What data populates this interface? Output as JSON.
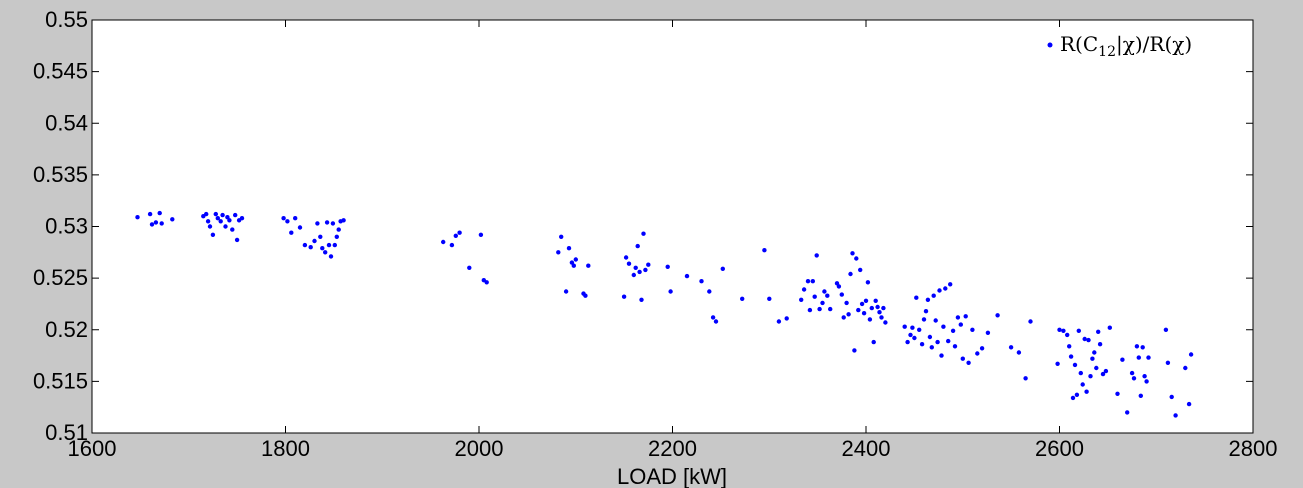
{
  "chart_data": {
    "type": "scatter",
    "title": "",
    "xlabel": "LOAD [kW]",
    "ylabel": "",
    "xlim": [
      1600,
      2800
    ],
    "ylim": [
      0.51,
      0.55
    ],
    "x_ticks": [
      "1600",
      "1800",
      "2000",
      "2200",
      "2400",
      "2600",
      "2800"
    ],
    "y_ticks": [
      "0.51",
      "0.515",
      "0.52",
      "0.525",
      "0.53",
      "0.535",
      "0.54",
      "0.545",
      "0.55"
    ],
    "grid": false,
    "legend_position": "top-right",
    "series": [
      {
        "name": "R(C12|χ)/R(χ)",
        "legend_parts": {
          "pre": "R(C",
          "sub": "12",
          "post": "|χ)/R(χ)"
        },
        "color": "#0000ff",
        "points": [
          [
            1647,
            0.5309
          ],
          [
            1660,
            0.5312
          ],
          [
            1662,
            0.5302
          ],
          [
            1666,
            0.5304
          ],
          [
            1670,
            0.5313
          ],
          [
            1672,
            0.5303
          ],
          [
            1683,
            0.5307
          ],
          [
            1715,
            0.531
          ],
          [
            1718,
            0.5312
          ],
          [
            1720,
            0.5305
          ],
          [
            1722,
            0.53
          ],
          [
            1725,
            0.5292
          ],
          [
            1728,
            0.5312
          ],
          [
            1730,
            0.5308
          ],
          [
            1733,
            0.5305
          ],
          [
            1735,
            0.5311
          ],
          [
            1738,
            0.53
          ],
          [
            1740,
            0.5309
          ],
          [
            1742,
            0.5306
          ],
          [
            1745,
            0.5297
          ],
          [
            1748,
            0.5311
          ],
          [
            1750,
            0.5287
          ],
          [
            1752,
            0.5306
          ],
          [
            1755,
            0.5308
          ],
          [
            1798,
            0.5308
          ],
          [
            1802,
            0.5305
          ],
          [
            1806,
            0.5294
          ],
          [
            1810,
            0.5308
          ],
          [
            1815,
            0.5299
          ],
          [
            1820,
            0.5282
          ],
          [
            1826,
            0.528
          ],
          [
            1830,
            0.5286
          ],
          [
            1833,
            0.5303
          ],
          [
            1836,
            0.529
          ],
          [
            1838,
            0.5279
          ],
          [
            1841,
            0.5275
          ],
          [
            1843,
            0.5304
          ],
          [
            1845,
            0.5282
          ],
          [
            1847,
            0.5271
          ],
          [
            1849,
            0.5303
          ],
          [
            1851,
            0.5282
          ],
          [
            1853,
            0.529
          ],
          [
            1855,
            0.5297
          ],
          [
            1857,
            0.5305
          ],
          [
            1860,
            0.5306
          ],
          [
            1963,
            0.5285
          ],
          [
            1972,
            0.5282
          ],
          [
            1976,
            0.5291
          ],
          [
            1980,
            0.5294
          ],
          [
            1990,
            0.526
          ],
          [
            2002,
            0.5292
          ],
          [
            2005,
            0.5248
          ],
          [
            2008,
            0.5246
          ],
          [
            2082,
            0.5275
          ],
          [
            2085,
            0.529
          ],
          [
            2090,
            0.5237
          ],
          [
            2093,
            0.5279
          ],
          [
            2096,
            0.5265
          ],
          [
            2098,
            0.5262
          ],
          [
            2100,
            0.5268
          ],
          [
            2108,
            0.5235
          ],
          [
            2110,
            0.5233
          ],
          [
            2113,
            0.5262
          ],
          [
            2150,
            0.5232
          ],
          [
            2152,
            0.527
          ],
          [
            2155,
            0.5264
          ],
          [
            2160,
            0.5253
          ],
          [
            2162,
            0.526
          ],
          [
            2164,
            0.5281
          ],
          [
            2166,
            0.5256
          ],
          [
            2168,
            0.5229
          ],
          [
            2170,
            0.5293
          ],
          [
            2172,
            0.5258
          ],
          [
            2175,
            0.5263
          ],
          [
            2195,
            0.5261
          ],
          [
            2198,
            0.5237
          ],
          [
            2215,
            0.5252
          ],
          [
            2230,
            0.5247
          ],
          [
            2238,
            0.5237
          ],
          [
            2242,
            0.5212
          ],
          [
            2245,
            0.5208
          ],
          [
            2252,
            0.5259
          ],
          [
            2272,
            0.523
          ],
          [
            2295,
            0.5277
          ],
          [
            2300,
            0.523
          ],
          [
            2310,
            0.5208
          ],
          [
            2318,
            0.5211
          ],
          [
            2333,
            0.5229
          ],
          [
            2336,
            0.5239
          ],
          [
            2340,
            0.5247
          ],
          [
            2342,
            0.5219
          ],
          [
            2345,
            0.5247
          ],
          [
            2347,
            0.5232
          ],
          [
            2349,
            0.5272
          ],
          [
            2352,
            0.522
          ],
          [
            2355,
            0.5226
          ],
          [
            2357,
            0.5237
          ],
          [
            2360,
            0.5233
          ],
          [
            2363,
            0.522
          ],
          [
            2370,
            0.5245
          ],
          [
            2372,
            0.5242
          ],
          [
            2375,
            0.5234
          ],
          [
            2377,
            0.5212
          ],
          [
            2380,
            0.5226
          ],
          [
            2382,
            0.5215
          ],
          [
            2384,
            0.5254
          ],
          [
            2386,
            0.5274
          ],
          [
            2388,
            0.518
          ],
          [
            2390,
            0.5269
          ],
          [
            2392,
            0.5219
          ],
          [
            2394,
            0.5258
          ],
          [
            2396,
            0.5225
          ],
          [
            2398,
            0.5216
          ],
          [
            2400,
            0.5228
          ],
          [
            2402,
            0.5246
          ],
          [
            2404,
            0.521
          ],
          [
            2406,
            0.5221
          ],
          [
            2408,
            0.5188
          ],
          [
            2410,
            0.5228
          ],
          [
            2412,
            0.5222
          ],
          [
            2414,
            0.5217
          ],
          [
            2416,
            0.5212
          ],
          [
            2418,
            0.5221
          ],
          [
            2420,
            0.5207
          ],
          [
            2440,
            0.5203
          ],
          [
            2443,
            0.5188
          ],
          [
            2446,
            0.5195
          ],
          [
            2448,
            0.5202
          ],
          [
            2450,
            0.5192
          ],
          [
            2452,
            0.5231
          ],
          [
            2455,
            0.52
          ],
          [
            2458,
            0.5186
          ],
          [
            2460,
            0.521
          ],
          [
            2462,
            0.5218
          ],
          [
            2464,
            0.5229
          ],
          [
            2466,
            0.5193
          ],
          [
            2468,
            0.5183
          ],
          [
            2470,
            0.5233
          ],
          [
            2472,
            0.5209
          ],
          [
            2474,
            0.5188
          ],
          [
            2476,
            0.5238
          ],
          [
            2478,
            0.5175
          ],
          [
            2480,
            0.5203
          ],
          [
            2482,
            0.524
          ],
          [
            2485,
            0.5189
          ],
          [
            2487,
            0.5244
          ],
          [
            2490,
            0.5199
          ],
          [
            2492,
            0.5184
          ],
          [
            2495,
            0.5212
          ],
          [
            2498,
            0.5205
          ],
          [
            2500,
            0.5172
          ],
          [
            2503,
            0.5213
          ],
          [
            2506,
            0.5168
          ],
          [
            2510,
            0.52
          ],
          [
            2515,
            0.5177
          ],
          [
            2520,
            0.5182
          ],
          [
            2526,
            0.5197
          ],
          [
            2536,
            0.5214
          ],
          [
            2550,
            0.5183
          ],
          [
            2558,
            0.5178
          ],
          [
            2565,
            0.5153
          ],
          [
            2570,
            0.5208
          ],
          [
            2598,
            0.5167
          ],
          [
            2600,
            0.52
          ],
          [
            2604,
            0.5199
          ],
          [
            2608,
            0.5195
          ],
          [
            2610,
            0.5184
          ],
          [
            2612,
            0.5174
          ],
          [
            2614,
            0.5134
          ],
          [
            2616,
            0.5166
          ],
          [
            2618,
            0.5137
          ],
          [
            2620,
            0.5199
          ],
          [
            2622,
            0.5158
          ],
          [
            2624,
            0.5147
          ],
          [
            2626,
            0.5191
          ],
          [
            2628,
            0.514
          ],
          [
            2630,
            0.519
          ],
          [
            2632,
            0.5155
          ],
          [
            2634,
            0.5172
          ],
          [
            2636,
            0.5178
          ],
          [
            2638,
            0.5163
          ],
          [
            2640,
            0.5198
          ],
          [
            2642,
            0.5186
          ],
          [
            2645,
            0.5157
          ],
          [
            2648,
            0.516
          ],
          [
            2652,
            0.5202
          ],
          [
            2660,
            0.5138
          ],
          [
            2665,
            0.5171
          ],
          [
            2670,
            0.512
          ],
          [
            2675,
            0.5158
          ],
          [
            2677,
            0.5153
          ],
          [
            2680,
            0.5184
          ],
          [
            2682,
            0.5173
          ],
          [
            2684,
            0.5136
          ],
          [
            2686,
            0.5183
          ],
          [
            2688,
            0.5155
          ],
          [
            2690,
            0.515
          ],
          [
            2692,
            0.5173
          ],
          [
            2710,
            0.52
          ],
          [
            2712,
            0.5168
          ],
          [
            2716,
            0.5135
          ],
          [
            2720,
            0.5117
          ],
          [
            2730,
            0.5163
          ],
          [
            2734,
            0.5128
          ],
          [
            2736,
            0.5176
          ]
        ]
      }
    ]
  }
}
